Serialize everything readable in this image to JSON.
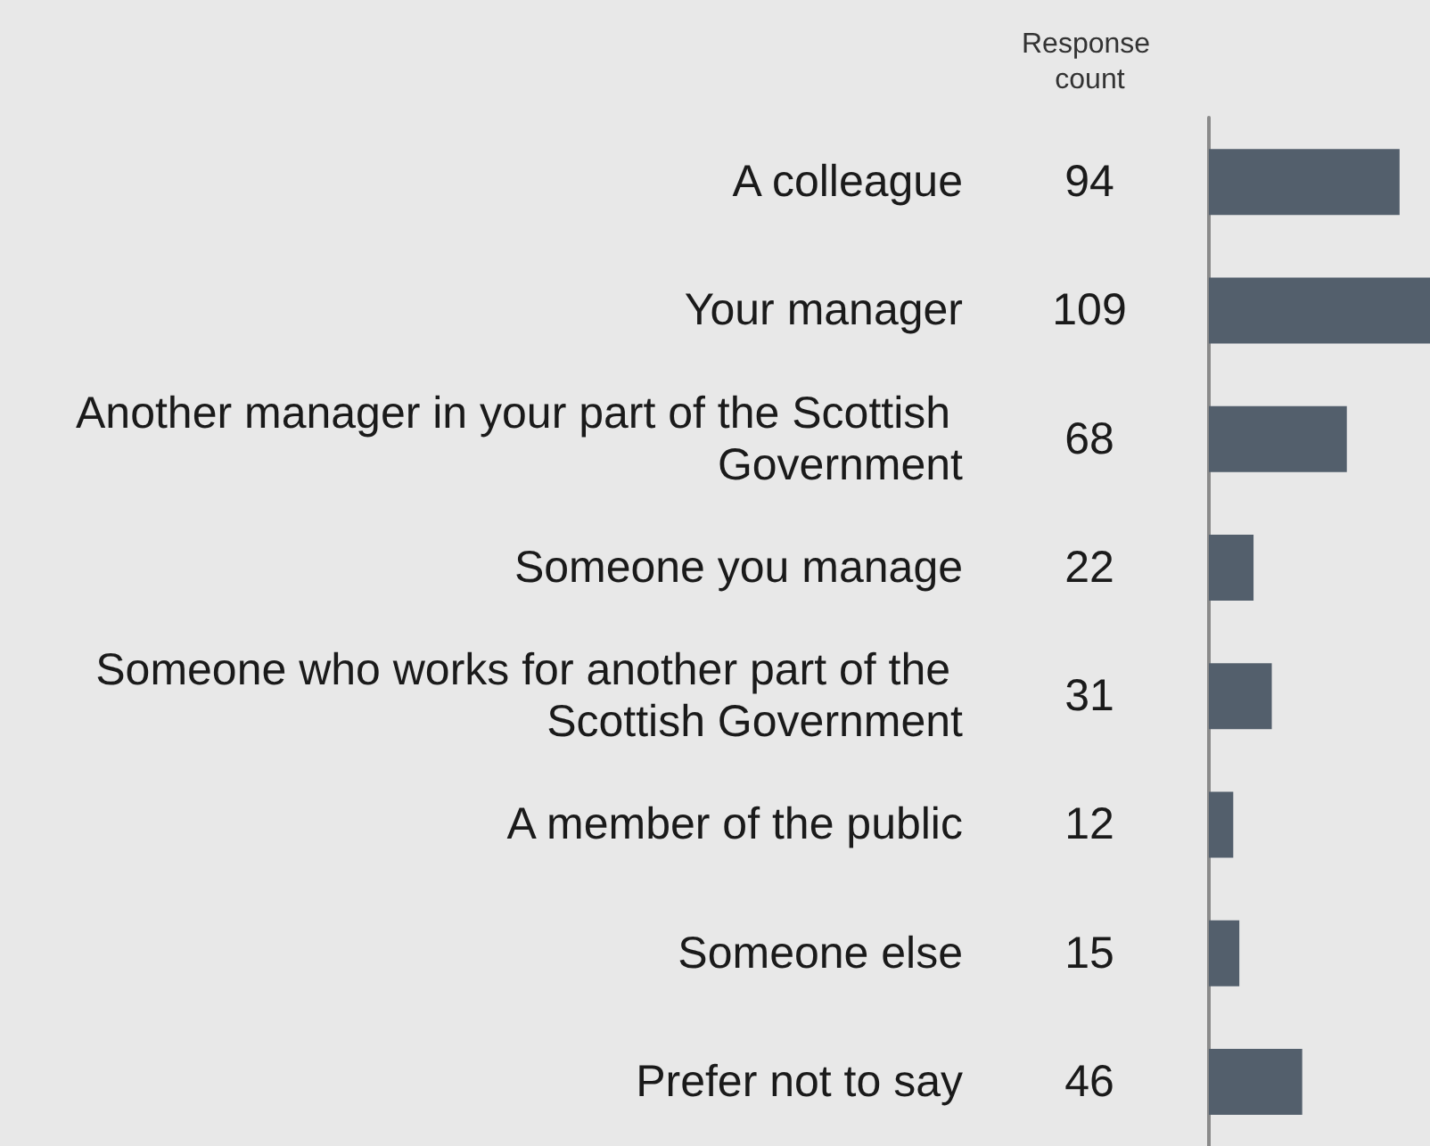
{
  "chart_data": {
    "type": "bar",
    "orientation": "horizontal",
    "title": "Response count",
    "categories": [
      "A colleague",
      "Your manager",
      "Another manager in your part of the Scottish Government",
      "Someone you manage",
      "Someone who works for another part of the Scottish Government",
      "A member of the public",
      "Someone else",
      "Prefer not to say"
    ],
    "values": [
      94,
      109,
      68,
      22,
      31,
      12,
      15,
      46
    ],
    "color": "#535f6c",
    "data_labels": true
  }
}
